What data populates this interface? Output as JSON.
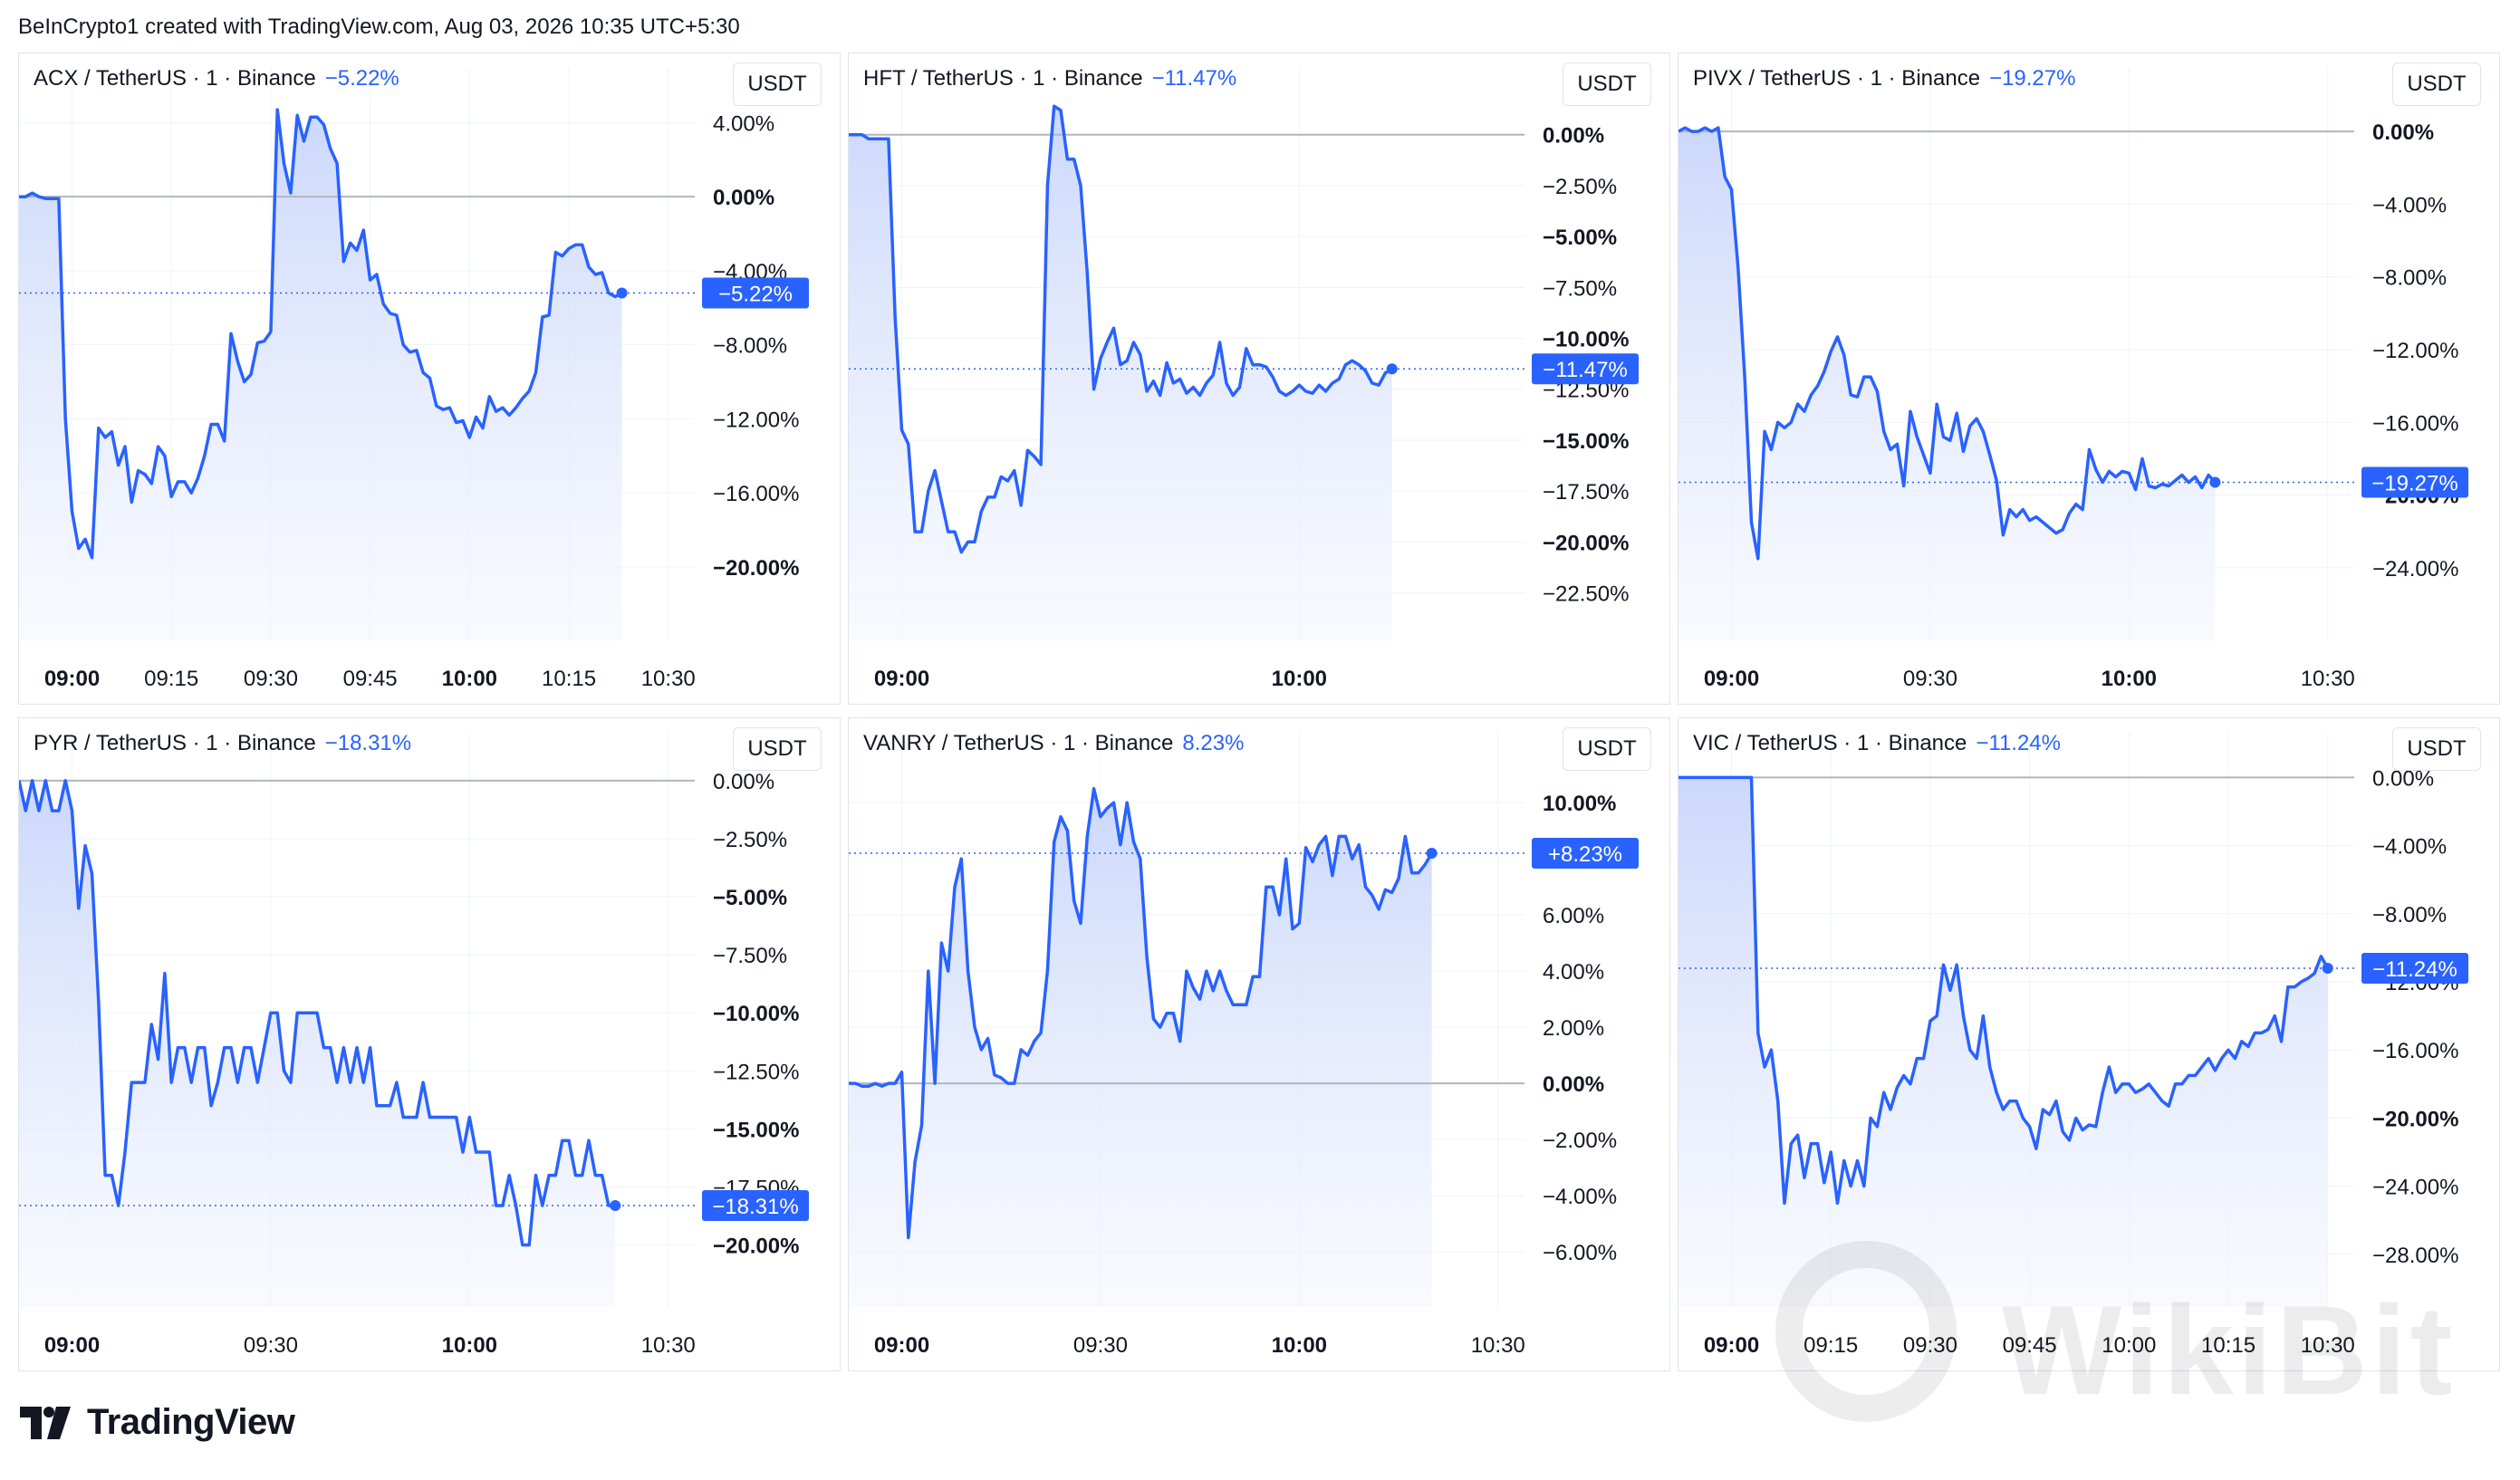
{
  "header": "BeInCrypto1 created with TradingView.com, Aug 03, 2026 10:35 UTC+5:30",
  "footer_brand": "TradingView",
  "watermark_text": "WikiBit",
  "colors": {
    "line": "#2962ff",
    "fill_top": "#c9d6fb",
    "fill_bottom": "#f4f7fe",
    "grid": "#f0f3fa",
    "baseline": "#b2b5be",
    "text": "#131722",
    "label_bg": "#2962ff"
  },
  "chart_data": [
    {
      "type": "area",
      "symbol": "ACX / TetherUS · 1 · Binance",
      "change": "−5.22%",
      "current_label": "−5.22%",
      "currency": "USDT",
      "x_range": [
        0,
        102
      ],
      "ylim": [
        -22.5,
        5
      ],
      "x_ticks": [
        {
          "pos": 8,
          "label": "09:00",
          "bold": true
        },
        {
          "pos": 23,
          "label": "09:15",
          "bold": false
        },
        {
          "pos": 38,
          "label": "09:30",
          "bold": false
        },
        {
          "pos": 53,
          "label": "09:45",
          "bold": false
        },
        {
          "pos": 68,
          "label": "10:00",
          "bold": true
        },
        {
          "pos": 83,
          "label": "10:15",
          "bold": false
        },
        {
          "pos": 98,
          "label": "10:30",
          "bold": false
        }
      ],
      "y_ticks": [
        {
          "v": 4,
          "label": "4.00%",
          "bold": false
        },
        {
          "v": 0,
          "label": "0.00%",
          "bold": true
        },
        {
          "v": -4,
          "label": "−4.00%",
          "bold": false
        },
        {
          "v": -8,
          "label": "−8.00%",
          "bold": false
        },
        {
          "v": -12,
          "label": "−12.00%",
          "bold": false
        },
        {
          "v": -16,
          "label": "−16.00%",
          "bold": false
        },
        {
          "v": -20,
          "label": "−20.00%",
          "bold": true
        }
      ],
      "values": [
        0,
        0,
        0.2,
        0,
        -0.1,
        -0.1,
        -0.1,
        -12,
        -17,
        -19,
        -18.5,
        -19.5,
        -12.5,
        -13,
        -12.7,
        -14.5,
        -13.5,
        -16.5,
        -14.8,
        -15,
        -15.5,
        -13.5,
        -14,
        -16.2,
        -15.4,
        -15.4,
        -16,
        -15.2,
        -14,
        -12.3,
        -12.3,
        -13.2,
        -7.4,
        -8.9,
        -10,
        -9.6,
        -7.9,
        -7.8,
        -7.3,
        4.7,
        1.8,
        0.2,
        4.4,
        3,
        4.3,
        4.3,
        3.9,
        2.6,
        1.8,
        -3.5,
        -2.5,
        -2.9,
        -1.8,
        -4.5,
        -4.2,
        -5.8,
        -6.3,
        -6.4,
        -8,
        -8.4,
        -8.3,
        -9.5,
        -9.8,
        -11.3,
        -11.5,
        -11.4,
        -12.2,
        -12.1,
        -13,
        -11.9,
        -12.5,
        -10.8,
        -11.6,
        -11.4,
        -11.8,
        -11.4,
        -10.9,
        -10.5,
        -9.5,
        -6.5,
        -6.4,
        -3,
        -3.2,
        -2.8,
        -2.6,
        -2.6,
        -3.8,
        -4.2,
        -4.1,
        -5.2,
        -5.4,
        -5.2
      ]
    },
    {
      "type": "area",
      "symbol": "HFT / TetherUS · 1 · Binance",
      "change": "−11.47%",
      "current_label": "−11.47%",
      "currency": "USDT",
      "x_range": [
        0,
        102
      ],
      "ylim": [
        -23.5,
        1.5
      ],
      "x_ticks": [
        {
          "pos": 8,
          "label": "09:00",
          "bold": true
        },
        {
          "pos": 68,
          "label": "10:00",
          "bold": true
        }
      ],
      "y_ticks": [
        {
          "v": 0,
          "label": "0.00%",
          "bold": true
        },
        {
          "v": -2.5,
          "label": "−2.50%",
          "bold": false
        },
        {
          "v": -5,
          "label": "−5.00%",
          "bold": true
        },
        {
          "v": -7.5,
          "label": "−7.50%",
          "bold": false
        },
        {
          "v": -10,
          "label": "−10.00%",
          "bold": true
        },
        {
          "v": -12.5,
          "label": "−12.50%",
          "bold": false
        },
        {
          "v": -15,
          "label": "−15.00%",
          "bold": true
        },
        {
          "v": -17.5,
          "label": "−17.50%",
          "bold": false
        },
        {
          "v": -20,
          "label": "−20.00%",
          "bold": true
        },
        {
          "v": -22.5,
          "label": "−22.50%",
          "bold": false
        }
      ],
      "values": [
        0,
        0,
        0,
        -0.2,
        -0.2,
        -0.2,
        -0.2,
        -9,
        -14.5,
        -15.2,
        -19.5,
        -19.5,
        -17.5,
        -16.5,
        -18,
        -19.5,
        -19.5,
        -20.5,
        -20,
        -20,
        -18.5,
        -17.8,
        -17.8,
        -16.8,
        -17,
        -16.5,
        -18.2,
        -15.5,
        -15.8,
        -16.2,
        -2.5,
        1.4,
        1.2,
        -1.2,
        -1.2,
        -2.5,
        -6.8,
        -12.5,
        -11,
        -10.2,
        -9.5,
        -11.3,
        -11.1,
        -10.2,
        -10.8,
        -12.6,
        -12.1,
        -12.8,
        -11.2,
        -12.2,
        -12,
        -12.7,
        -12.4,
        -12.8,
        -12.2,
        -11.8,
        -10.2,
        -12.2,
        -12.8,
        -12.4,
        -10.5,
        -11.3,
        -11.3,
        -11.4,
        -11.9,
        -12.6,
        -12.8,
        -12.6,
        -12.3,
        -12.6,
        -12.7,
        -12.3,
        -12.6,
        -12.2,
        -12,
        -11.3,
        -11.1,
        -11.3,
        -11.6,
        -12.2,
        -12.3,
        -11.7,
        -11.5
      ]
    },
    {
      "type": "area",
      "symbol": "PIVX / TetherUS · 1 · Binance",
      "change": "−19.27%",
      "current_label": "−19.27%",
      "currency": "USDT",
      "x_range": [
        0,
        102
      ],
      "ylim": [
        -26.5,
        1.5
      ],
      "x_ticks": [
        {
          "pos": 8,
          "label": "09:00",
          "bold": true
        },
        {
          "pos": 38,
          "label": "09:30",
          "bold": false
        },
        {
          "pos": 68,
          "label": "10:00",
          "bold": true
        },
        {
          "pos": 98,
          "label": "10:30",
          "bold": false
        }
      ],
      "y_ticks": [
        {
          "v": 0,
          "label": "0.00%",
          "bold": true
        },
        {
          "v": -4,
          "label": "−4.00%",
          "bold": false
        },
        {
          "v": -8,
          "label": "−8.00%",
          "bold": false
        },
        {
          "v": -12,
          "label": "−12.00%",
          "bold": false
        },
        {
          "v": -16,
          "label": "−16.00%",
          "bold": false
        },
        {
          "v": -20,
          "label": "−20.00%",
          "bold": true
        },
        {
          "v": -24,
          "label": "−24.00%",
          "bold": false
        }
      ],
      "values": [
        0,
        0.2,
        0,
        0,
        0.2,
        0,
        0.2,
        -2.5,
        -3.2,
        -7.5,
        -13.5,
        -21.5,
        -23.5,
        -16.5,
        -17.5,
        -16,
        -16.3,
        -16,
        -15,
        -15.4,
        -14.5,
        -14,
        -13.2,
        -12.1,
        -11.3,
        -12.3,
        -14.5,
        -14.6,
        -13.5,
        -13.5,
        -14.3,
        -16.5,
        -17.5,
        -17.2,
        -19.5,
        -15.4,
        -16.8,
        -17.8,
        -18.8,
        -15,
        -16.8,
        -17,
        -15.5,
        -17.6,
        -16.2,
        -15.8,
        -16.5,
        -17.8,
        -19.2,
        -22.2,
        -20.8,
        -21.2,
        -20.8,
        -21.4,
        -21.2,
        -21.5,
        -21.8,
        -22.1,
        -21.9,
        -21,
        -20.5,
        -20.8,
        -17.5,
        -18.6,
        -19.3,
        -18.7,
        -19,
        -18.7,
        -18.8,
        -19.7,
        -18,
        -19.5,
        -19.6,
        -19.4,
        -19.5,
        -19.2,
        -18.9,
        -19.3,
        -19,
        -19.6,
        -18.9,
        -19.3
      ]
    },
    {
      "type": "area",
      "symbol": "PYR / TetherUS · 1 · Binance",
      "change": "−18.31%",
      "current_label": "−18.31%",
      "currency": "USDT",
      "x_range": [
        0,
        102
      ],
      "ylim": [
        -21.5,
        0.5
      ],
      "x_ticks": [
        {
          "pos": 8,
          "label": "09:00",
          "bold": true
        },
        {
          "pos": 38,
          "label": "09:30",
          "bold": false
        },
        {
          "pos": 68,
          "label": "10:00",
          "bold": true
        },
        {
          "pos": 98,
          "label": "10:30",
          "bold": false
        }
      ],
      "y_ticks": [
        {
          "v": 0,
          "label": "0.00%",
          "bold": false
        },
        {
          "v": -2.5,
          "label": "−2.50%",
          "bold": false
        },
        {
          "v": -5,
          "label": "−5.00%",
          "bold": true
        },
        {
          "v": -7.5,
          "label": "−7.50%",
          "bold": false
        },
        {
          "v": -10,
          "label": "−10.00%",
          "bold": true
        },
        {
          "v": -12.5,
          "label": "−12.50%",
          "bold": false
        },
        {
          "v": -15,
          "label": "−15.00%",
          "bold": true
        },
        {
          "v": -17.5,
          "label": "−17.50%",
          "bold": false
        },
        {
          "v": -20,
          "label": "−20.00%",
          "bold": true
        }
      ],
      "values": [
        0,
        -1.3,
        0,
        -1.3,
        0,
        -1.3,
        -1.3,
        0,
        -1.3,
        -5.5,
        -2.8,
        -4,
        -9.5,
        -17,
        -17,
        -18.3,
        -16,
        -13,
        -13,
        -13,
        -10.5,
        -12,
        -8.3,
        -13,
        -11.5,
        -11.5,
        -13,
        -11.5,
        -11.5,
        -14,
        -13,
        -11.5,
        -11.5,
        -13,
        -11.5,
        -11.5,
        -13,
        -11.5,
        -10,
        -10,
        -12.5,
        -13,
        -10,
        -10,
        -10,
        -10,
        -11.5,
        -11.5,
        -13,
        -11.5,
        -13,
        -11.5,
        -13,
        -11.5,
        -14,
        -14,
        -14,
        -13,
        -14.5,
        -14.5,
        -14.5,
        -13,
        -14.5,
        -14.5,
        -14.5,
        -14.5,
        -14.5,
        -16,
        -14.5,
        -16,
        -16,
        -16,
        -18.3,
        -18.3,
        -17,
        -18.3,
        -20,
        -20,
        -17,
        -18.3,
        -17,
        -17,
        -15.5,
        -15.5,
        -17,
        -17,
        -15.5,
        -17,
        -17,
        -18.3,
        -18.3
      ]
    },
    {
      "type": "area",
      "symbol": "VANRY / TetherUS · 1 · Binance",
      "change": "8.23%",
      "current_label": "+8.23%",
      "currency": "USDT",
      "x_range": [
        0,
        102
      ],
      "ylim": [
        -7,
        11.2
      ],
      "x_ticks": [
        {
          "pos": 8,
          "label": "09:00",
          "bold": true
        },
        {
          "pos": 38,
          "label": "09:30",
          "bold": false
        },
        {
          "pos": 68,
          "label": "10:00",
          "bold": true
        },
        {
          "pos": 98,
          "label": "10:30",
          "bold": false
        }
      ],
      "y_ticks": [
        {
          "v": 10,
          "label": "10.00%",
          "bold": true
        },
        {
          "v": 6,
          "label": "6.00%",
          "bold": false
        },
        {
          "v": 4,
          "label": "4.00%",
          "bold": false
        },
        {
          "v": 2,
          "label": "2.00%",
          "bold": false
        },
        {
          "v": 0,
          "label": "0.00%",
          "bold": true
        },
        {
          "v": -2,
          "label": "−2.00%",
          "bold": false
        },
        {
          "v": -4,
          "label": "−4.00%",
          "bold": false
        },
        {
          "v": -6,
          "label": "−6.00%",
          "bold": false
        }
      ],
      "values": [
        0,
        0,
        -0.1,
        -0.1,
        0,
        -0.1,
        0,
        0,
        0.4,
        -5.5,
        -2.8,
        -1.5,
        4,
        0,
        5,
        4,
        7,
        8,
        4,
        2,
        1.2,
        1.6,
        0.3,
        0.2,
        0,
        0,
        1.2,
        1,
        1.5,
        1.8,
        4,
        8.6,
        9.5,
        9,
        6.5,
        5.7,
        8.8,
        10.5,
        9.5,
        9.8,
        10,
        8.5,
        10,
        8.6,
        8,
        4.5,
        2.3,
        2,
        2.5,
        2.5,
        1.5,
        4,
        3.4,
        3,
        4,
        3.3,
        4,
        3.3,
        2.8,
        2.8,
        2.8,
        3.8,
        3.8,
        7,
        7,
        6,
        8,
        5.5,
        5.7,
        8.4,
        7.9,
        8.5,
        8.8,
        7.4,
        8.8,
        8.8,
        8,
        8.5,
        7,
        6.7,
        6.2,
        6.9,
        6.8,
        7.3,
        8.8,
        7.5,
        7.5,
        7.8,
        8.2
      ]
    },
    {
      "type": "area",
      "symbol": "VIC / TetherUS · 1 · Binance",
      "change": "−11.24%",
      "current_label": "−11.24%",
      "currency": "USDT",
      "x_range": [
        0,
        102
      ],
      "ylim": [
        -29.5,
        0.5
      ],
      "x_ticks": [
        {
          "pos": 8,
          "label": "09:00",
          "bold": true
        },
        {
          "pos": 23,
          "label": "09:15",
          "bold": false
        },
        {
          "pos": 38,
          "label": "09:30",
          "bold": false
        },
        {
          "pos": 53,
          "label": "09:45",
          "bold": false
        },
        {
          "pos": 68,
          "label": "10:00",
          "bold": false
        },
        {
          "pos": 83,
          "label": "10:15",
          "bold": false
        },
        {
          "pos": 98,
          "label": "10:30",
          "bold": false
        }
      ],
      "y_ticks": [
        {
          "v": 0,
          "label": "0.00%",
          "bold": false
        },
        {
          "v": -4,
          "label": "−4.00%",
          "bold": false
        },
        {
          "v": -8,
          "label": "−8.00%",
          "bold": false
        },
        {
          "v": -12,
          "label": "−12.00%",
          "bold": false
        },
        {
          "v": -16,
          "label": "−16.00%",
          "bold": false
        },
        {
          "v": -20,
          "label": "−20.00%",
          "bold": true
        },
        {
          "v": -24,
          "label": "−24.00%",
          "bold": false
        },
        {
          "v": -28,
          "label": "−28.00%",
          "bold": false
        }
      ],
      "values": [
        0,
        0,
        0,
        0,
        0,
        0,
        0,
        0,
        0,
        0,
        0,
        0,
        -15,
        -17,
        -16,
        -19,
        -25,
        -21.5,
        -21,
        -23.5,
        -21.5,
        -21.5,
        -23.8,
        -22,
        -25,
        -22.5,
        -24,
        -22.5,
        -24,
        -20,
        -20.5,
        -18.5,
        -19.5,
        -18.2,
        -17.5,
        -18,
        -16.5,
        -16.5,
        -14.3,
        -14,
        -11,
        -12.5,
        -11,
        -14,
        -16,
        -16.5,
        -14,
        -17,
        -18.5,
        -19.5,
        -19,
        -19,
        -20,
        -20.5,
        -21.8,
        -19.5,
        -19.8,
        -19,
        -20.8,
        -21.3,
        -20,
        -20.7,
        -20.4,
        -20.5,
        -18.5,
        -17,
        -18.5,
        -18,
        -18,
        -18.5,
        -18.3,
        -18,
        -18.5,
        -19,
        -19.3,
        -18,
        -18,
        -17.5,
        -17.5,
        -17,
        -16.5,
        -17.2,
        -16.5,
        -16,
        -16.5,
        -15.5,
        -15.8,
        -15,
        -15,
        -14.8,
        -14,
        -15.5,
        -12.3,
        -12.3,
        -12,
        -11.8,
        -11.5,
        -10.5,
        -11.2
      ]
    }
  ]
}
